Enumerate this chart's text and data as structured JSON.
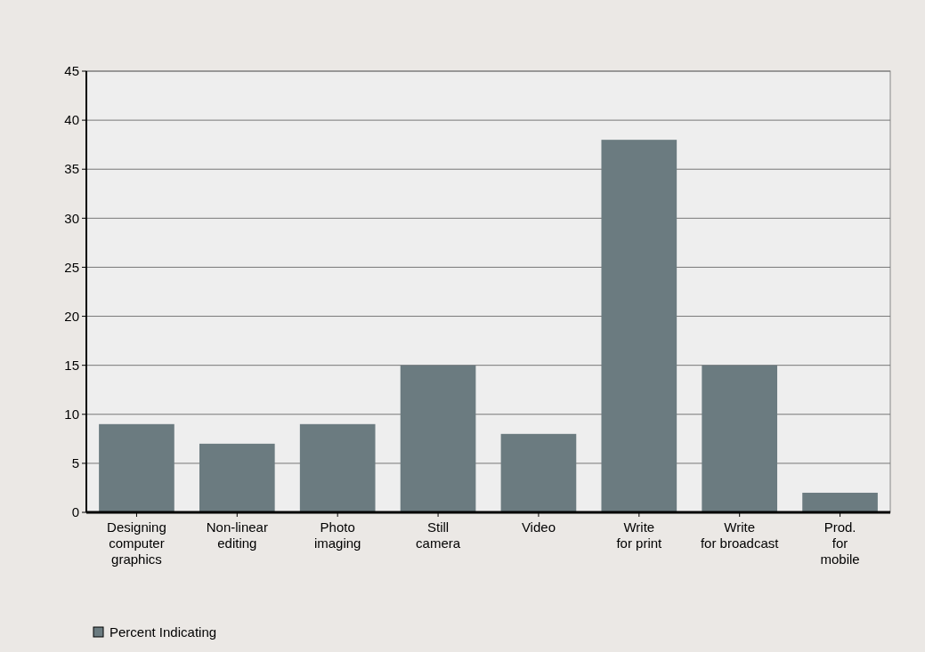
{
  "chart_data": {
    "type": "bar",
    "categories": [
      "Designing\ncomputer\ngraphics",
      "Non-linear\nediting",
      "Photo\nimaging",
      "Still\ncamera",
      "Video",
      "Write\nfor print",
      "Write\nfor broadcast",
      "Prod.\nfor\nmobile"
    ],
    "series": [
      {
        "name": "Percent Indicating",
        "color": "#6b7b80",
        "values": [
          9,
          7,
          9,
          15,
          8,
          38,
          15,
          2
        ]
      }
    ],
    "ylim": [
      0,
      45
    ],
    "yticks": [
      0,
      5,
      10,
      15,
      20,
      25,
      30,
      35,
      40,
      45
    ],
    "grid": "y",
    "legend": "bottom left"
  }
}
